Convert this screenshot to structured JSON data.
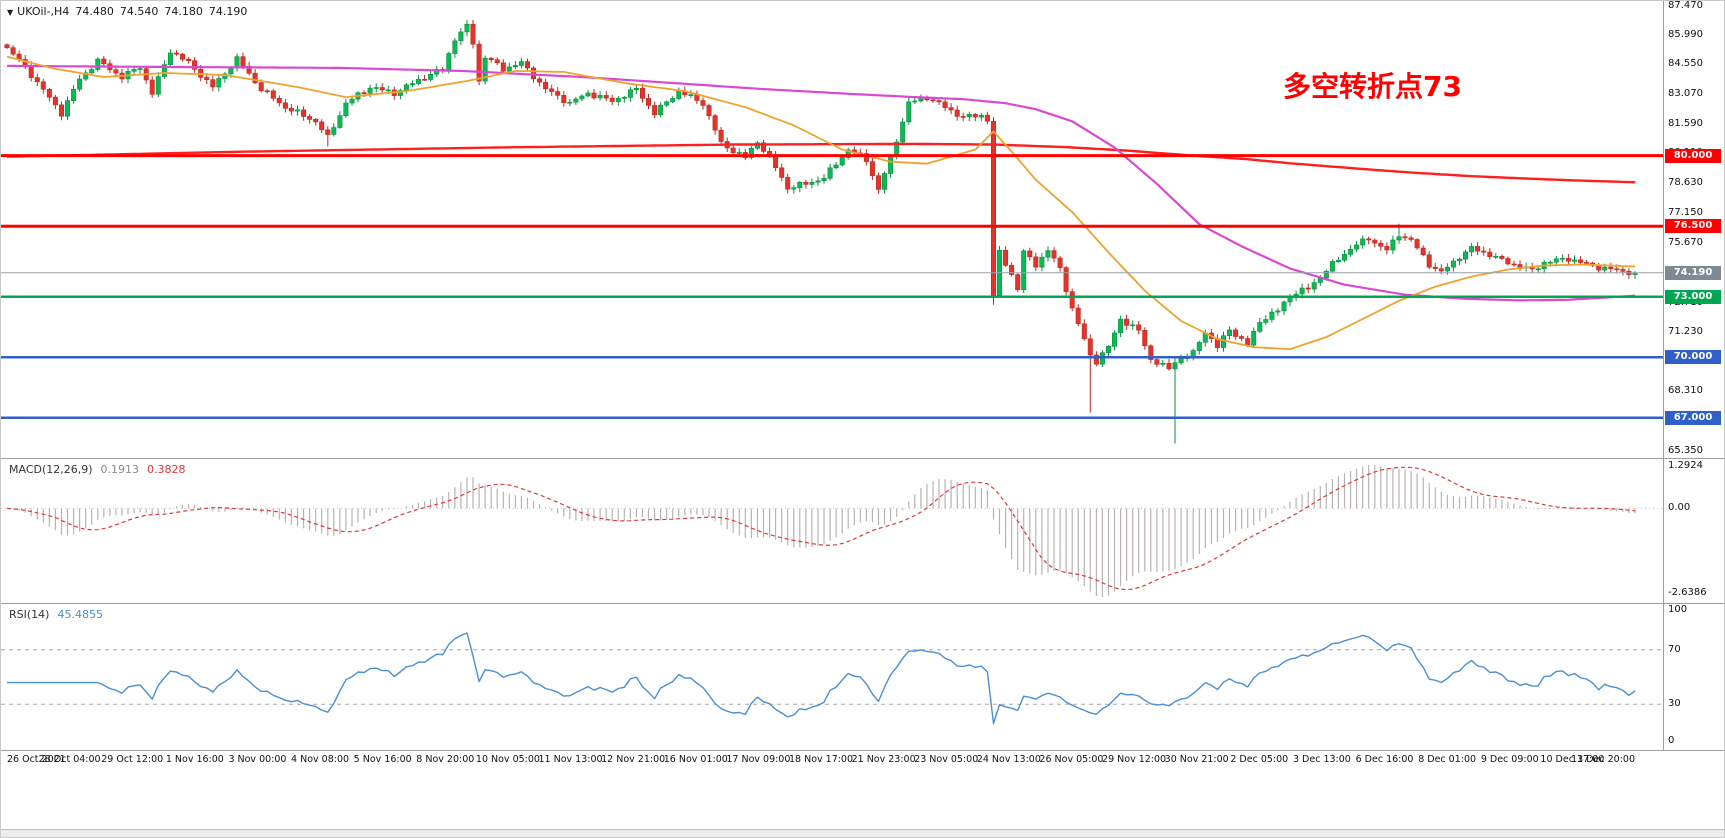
{
  "header": {
    "symbol_dropdown": "▼",
    "symbol": "UKOil-,H4",
    "ohlc": {
      "open": "74.480",
      "high": "74.540",
      "low": "74.180",
      "close": "74.190"
    }
  },
  "annotation": {
    "text": "多空转折点73",
    "color": "#ff0000"
  },
  "colors": {
    "background": "#ffffff",
    "up": "#0db954",
    "up_border": "#0a8f42",
    "down": "#e3342c",
    "down_border": "#bf2921",
    "current_line": "#97a1ab",
    "separator": "#9e9e9e",
    "macd_hist": "#b9b2b2",
    "macd_signal": "#e23a3a",
    "rsi_line": "#4a8fd4",
    "band_dash": "#a7a7a7"
  },
  "chart_data": {
    "type": "candlestick",
    "symbol": "UKOil-",
    "timeframe": "H4",
    "title": "UKOil-,H4",
    "last_ohlc": {
      "open": 74.48,
      "high": 74.54,
      "low": 74.18,
      "close": 74.19
    },
    "price_axis": {
      "min": 65.35,
      "max": 87.47,
      "labels": [
        "87.470",
        "85.990",
        "84.550",
        "83.070",
        "81.590",
        "80.110",
        "78.630",
        "77.150",
        "75.670",
        "74.190",
        "72.710",
        "71.230",
        "69.750",
        "68.310",
        "66.830",
        "65.350"
      ]
    },
    "levels": [
      {
        "price": 80.0,
        "label": "80.000",
        "color": "#ff0000",
        "width": 3
      },
      {
        "price": 76.5,
        "label": "76.500",
        "color": "#ff0000",
        "width": 3
      },
      {
        "price": 73.0,
        "label": "73.000",
        "color": "#00a651",
        "width": 2.5
      },
      {
        "price": 70.0,
        "label": "70.000",
        "color": "#2f5fc9",
        "width": 2.5
      },
      {
        "price": 67.0,
        "label": "67.000",
        "color": "#2f5fc9",
        "width": 2.5
      }
    ],
    "current_price": {
      "value": 74.19,
      "label": "74.190",
      "line_color": "#97a1ab",
      "badge_color": "#7e8993"
    },
    "n_candles": 270,
    "close_waypoints": [
      [
        0,
        85.35
      ],
      [
        3,
        84.4
      ],
      [
        9,
        82.1
      ],
      [
        12,
        83.8
      ],
      [
        15,
        84.7
      ],
      [
        19,
        83.9
      ],
      [
        22,
        84.4
      ],
      [
        24,
        83.1
      ],
      [
        27,
        85.2
      ],
      [
        30,
        84.6
      ],
      [
        34,
        83.4
      ],
      [
        38,
        84.8
      ],
      [
        42,
        83.3
      ],
      [
        46,
        82.4
      ],
      [
        51,
        81.7
      ],
      [
        53,
        80.9
      ],
      [
        56,
        82.6
      ],
      [
        60,
        83.4
      ],
      [
        64,
        83.1
      ],
      [
        69,
        83.9
      ],
      [
        72,
        84.3
      ],
      [
        74,
        85.8
      ],
      [
        76,
        86.4
      ],
      [
        77,
        85.6
      ],
      [
        78,
        83.7
      ],
      [
        79,
        84.9
      ],
      [
        82,
        84.3
      ],
      [
        85,
        84.6
      ],
      [
        89,
        83.3
      ],
      [
        93,
        82.6
      ],
      [
        96,
        83.1
      ],
      [
        100,
        82.7
      ],
      [
        104,
        83.3
      ],
      [
        107,
        82.1
      ],
      [
        111,
        83.2
      ],
      [
        115,
        82.6
      ],
      [
        118,
        80.6
      ],
      [
        122,
        79.9
      ],
      [
        124,
        80.7
      ],
      [
        126,
        79.9
      ],
      [
        129,
        78.4
      ],
      [
        132,
        78.6
      ],
      [
        135,
        78.9
      ],
      [
        139,
        80.3
      ],
      [
        142,
        79.8
      ],
      [
        144,
        78.3
      ],
      [
        146,
        79.9
      ],
      [
        149,
        82.6
      ],
      [
        152,
        82.9
      ],
      [
        155,
        82.4
      ],
      [
        158,
        81.9
      ],
      [
        161,
        82.0
      ],
      [
        162,
        81.8
      ],
      [
        163,
        73.0
      ],
      [
        164,
        75.2
      ],
      [
        166,
        74.1
      ],
      [
        167,
        73.4
      ],
      [
        168,
        75.2
      ],
      [
        170,
        74.6
      ],
      [
        172,
        75.3
      ],
      [
        174,
        74.4
      ],
      [
        176,
        72.4
      ],
      [
        179,
        70.1
      ],
      [
        180,
        69.8
      ],
      [
        182,
        70.5
      ],
      [
        184,
        71.9
      ],
      [
        187,
        71.3
      ],
      [
        189,
        69.9
      ],
      [
        192,
        69.4
      ],
      [
        193,
        69.8
      ],
      [
        196,
        70.2
      ],
      [
        198,
        71.3
      ],
      [
        200,
        70.5
      ],
      [
        202,
        71.4
      ],
      [
        205,
        70.6
      ],
      [
        207,
        71.8
      ],
      [
        210,
        72.3
      ],
      [
        212,
        73.1
      ],
      [
        215,
        73.4
      ],
      [
        219,
        74.6
      ],
      [
        222,
        75.4
      ],
      [
        225,
        75.9
      ],
      [
        228,
        75.3
      ],
      [
        230,
        76.1
      ],
      [
        232,
        75.8
      ],
      [
        235,
        74.6
      ],
      [
        237,
        74.2
      ],
      [
        240,
        75.0
      ],
      [
        242,
        75.4
      ],
      [
        245,
        75.1
      ],
      [
        247,
        74.8
      ],
      [
        250,
        74.5
      ],
      [
        252,
        74.3
      ],
      [
        254,
        74.7
      ],
      [
        258,
        74.9
      ],
      [
        261,
        74.6
      ],
      [
        264,
        74.4
      ],
      [
        269,
        74.19
      ]
    ],
    "wick_overrides": [
      {
        "i": 53,
        "low": 80.45
      },
      {
        "i": 76,
        "high": 86.72
      },
      {
        "i": 163,
        "low": 72.6
      },
      {
        "i": 179,
        "low": 67.25
      },
      {
        "i": 193,
        "low": 65.72
      },
      {
        "i": 230,
        "high": 76.62
      }
    ],
    "moving_averages": [
      {
        "name": "ma-slow",
        "color": "#ff1f1f",
        "width": 2.4,
        "points": [
          [
            0,
            79.95
          ],
          [
            40,
            80.2
          ],
          [
            80,
            80.4
          ],
          [
            120,
            80.55
          ],
          [
            150,
            80.58
          ],
          [
            163,
            80.55
          ],
          [
            175,
            80.42
          ],
          [
            185,
            80.25
          ],
          [
            196,
            80.0
          ],
          [
            205,
            79.82
          ],
          [
            212,
            79.62
          ],
          [
            222,
            79.38
          ],
          [
            232,
            79.16
          ],
          [
            242,
            78.98
          ],
          [
            252,
            78.85
          ],
          [
            260,
            78.76
          ],
          [
            269,
            78.68
          ]
        ]
      },
      {
        "name": "ma-mid",
        "color": "#d94ad1",
        "width": 2.2,
        "points": [
          [
            0,
            84.45
          ],
          [
            25,
            84.4
          ],
          [
            55,
            84.35
          ],
          [
            75,
            84.2
          ],
          [
            95,
            83.9
          ],
          [
            110,
            83.6
          ],
          [
            125,
            83.3
          ],
          [
            140,
            83.05
          ],
          [
            150,
            82.9
          ],
          [
            158,
            82.8
          ],
          [
            165,
            82.6
          ],
          [
            170,
            82.3
          ],
          [
            176,
            81.7
          ],
          [
            183,
            80.4
          ],
          [
            190,
            78.6
          ],
          [
            197,
            76.6
          ],
          [
            204,
            75.5
          ],
          [
            212,
            74.4
          ],
          [
            221,
            73.6
          ],
          [
            231,
            73.1
          ],
          [
            241,
            72.9
          ],
          [
            250,
            72.82
          ],
          [
            258,
            72.85
          ],
          [
            269,
            73.05
          ]
        ]
      },
      {
        "name": "ma-fast",
        "color": "#eea32e",
        "width": 1.8,
        "points": [
          [
            0,
            84.9
          ],
          [
            8,
            84.3
          ],
          [
            16,
            83.9
          ],
          [
            26,
            84.1
          ],
          [
            36,
            84.0
          ],
          [
            48,
            83.4
          ],
          [
            56,
            82.9
          ],
          [
            66,
            83.2
          ],
          [
            76,
            83.7
          ],
          [
            84,
            84.2
          ],
          [
            92,
            84.15
          ],
          [
            102,
            83.6
          ],
          [
            112,
            83.2
          ],
          [
            122,
            82.4
          ],
          [
            130,
            81.5
          ],
          [
            138,
            80.3
          ],
          [
            146,
            79.7
          ],
          [
            152,
            79.6
          ],
          [
            160,
            80.3
          ],
          [
            163,
            81.2
          ],
          [
            166,
            80.2
          ],
          [
            170,
            78.8
          ],
          [
            176,
            77.2
          ],
          [
            182,
            75.2
          ],
          [
            188,
            73.3
          ],
          [
            194,
            71.8
          ],
          [
            200,
            70.9
          ],
          [
            206,
            70.5
          ],
          [
            212,
            70.4
          ],
          [
            218,
            71.0
          ],
          [
            224,
            71.9
          ],
          [
            230,
            72.8
          ],
          [
            236,
            73.5
          ],
          [
            242,
            74.0
          ],
          [
            248,
            74.35
          ],
          [
            254,
            74.55
          ],
          [
            260,
            74.6
          ],
          [
            269,
            74.5
          ]
        ]
      }
    ],
    "x_labels": [
      "26 Oct 2021",
      "28 Oct 04:00",
      "29 Oct 12:00",
      "1 Nov 16:00",
      "3 Nov 00:00",
      "4 Nov 08:00",
      "5 Nov 16:00",
      "8 Nov 20:00",
      "10 Nov 05:00",
      "11 Nov 13:00",
      "12 Nov 21:00",
      "16 Nov 01:00",
      "17 Nov 09:00",
      "18 Nov 17:00",
      "21 Nov 23:00",
      "23 Nov 05:00",
      "24 Nov 13:00",
      "26 Nov 05:00",
      "29 Nov 12:00",
      "30 Nov 21:00",
      "2 Dec 05:00",
      "3 Dec 13:00",
      "6 Dec 16:00",
      "8 Dec 01:00",
      "9 Dec 09:00",
      "10 Dec 17:00",
      "13 Dec 20:00"
    ],
    "indicators": [
      {
        "name": "MACD",
        "label": "MACD(12,26,9)",
        "value_main": "0.1913",
        "value_signal": "0.3828",
        "fast": 12,
        "slow": 26,
        "signal": 9,
        "axis_max": "1.2924",
        "axis_zero": "0.00",
        "axis_min": "-2.6386",
        "range": [
          -2.6386,
          1.2924
        ],
        "hist_color": "#b9b2b2",
        "signal_color": "#e23a3a"
      },
      {
        "name": "RSI",
        "label": "RSI(14)",
        "value": "45.4855",
        "period": 14,
        "axis": [
          "100",
          "70",
          "30",
          "0"
        ],
        "levels": [
          70,
          30
        ],
        "line_color": "#4a8fd4",
        "range": [
          0,
          100
        ]
      }
    ]
  }
}
